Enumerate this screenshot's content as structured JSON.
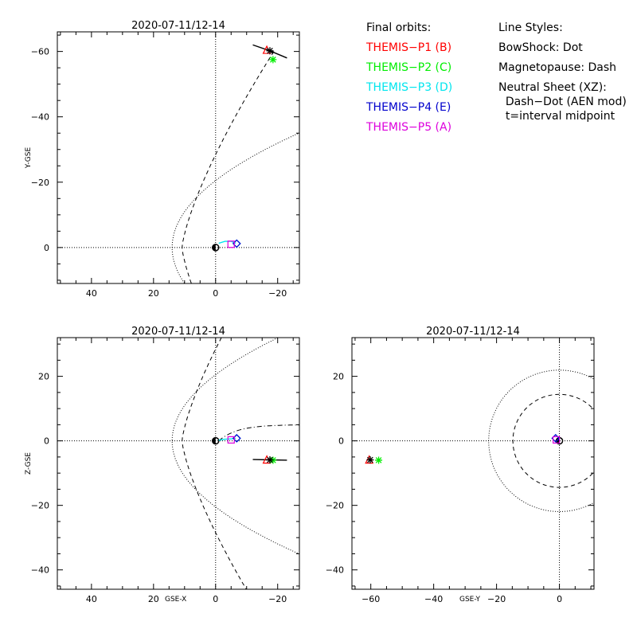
{
  "legend": {
    "orbits_heading": "Final orbits:",
    "styles_heading": "Line Styles:",
    "probes": [
      {
        "label": "THEMIS−P1 (B)",
        "color": "#ff0000"
      },
      {
        "label": "THEMIS−P2 (C)",
        "color": "#00ee00"
      },
      {
        "label": "THEMIS−P3 (D)",
        "color": "#00e5ee"
      },
      {
        "label": "THEMIS−P4 (E)",
        "color": "#0000cc"
      },
      {
        "label": "THEMIS−P5 (A)",
        "color": "#dd00dd"
      }
    ],
    "styles": [
      "BowShock: Dot",
      "Magnetopause: Dash",
      "Neutral Sheet (XZ):",
      "  Dash−Dot (AEN mod)",
      "  t=interval midpoint"
    ]
  },
  "chart_data": [
    {
      "type": "scatter",
      "panel": "XY",
      "title": "2020-07-11/12-14",
      "xlabel": "",
      "ylabel": "Y-GSE",
      "xlim": [
        51,
        -27
      ],
      "ylim": [
        11,
        -66
      ],
      "xticks": [
        40,
        20,
        0,
        -20
      ],
      "yticks": [
        -60,
        -40,
        -20,
        0
      ],
      "tick_labels_x": [
        "40",
        "20",
        "0",
        "−20"
      ],
      "tick_labels_y": [
        "−60",
        "−40",
        "−20",
        "0"
      ],
      "probes": [
        {
          "probe": "THEMIS-P1 (B)",
          "symbol": "triangle",
          "color": "#ff0000",
          "x": -16.5,
          "y": -60.5
        },
        {
          "probe": "THEMIS-P2 (C)",
          "symbol": "asterisk",
          "color": "#00ee00",
          "x": -18.5,
          "y": -57.5
        },
        {
          "probe": "THEMIS-P3 (D)",
          "symbol": "diamond",
          "color": "#00e5ee",
          "x": -6.8,
          "y": -1.2
        },
        {
          "probe": "THEMIS-P4 (E)",
          "symbol": "diamond",
          "color": "#0000cc",
          "x": -6.8,
          "y": -1.2
        },
        {
          "probe": "THEMIS-P5 (A)",
          "symbol": "square",
          "color": "#dd00dd",
          "x": -5.0,
          "y": -1.0
        }
      ],
      "black_asterisk": {
        "x": -17.5,
        "y": -60.2
      },
      "orbit_tracks": [
        {
          "color": "#000000",
          "points": [
            [
              -12,
              -62
            ],
            [
              -17.5,
              -60.2
            ],
            [
              -23,
              -58
            ]
          ]
        },
        {
          "color": "#00e5ee",
          "points": [
            [
              -1,
              -1.3
            ],
            [
              -3,
              -1.9
            ],
            [
              -5,
              -1.9
            ],
            [
              -6.5,
              -1.3
            ]
          ]
        }
      ]
    },
    {
      "type": "scatter",
      "panel": "XZ",
      "title": "2020-07-11/12-14",
      "xlabel": "GSE-X",
      "ylabel": "Z-GSE",
      "xlim": [
        51,
        -27
      ],
      "ylim": [
        -46,
        32
      ],
      "xticks": [
        40,
        20,
        0,
        -20
      ],
      "yticks": [
        -40,
        -20,
        0,
        20
      ],
      "tick_labels_x": [
        "40",
        "20",
        "0",
        "−20"
      ],
      "tick_labels_y": [
        "−40",
        "−20",
        "0",
        "20"
      ],
      "probes": [
        {
          "probe": "THEMIS-P1 (B)",
          "symbol": "triangle",
          "color": "#ff0000",
          "x": -16.5,
          "y": -5.8
        },
        {
          "probe": "THEMIS-P2 (C)",
          "symbol": "asterisk",
          "color": "#00ee00",
          "x": -18.5,
          "y": -6.0
        },
        {
          "probe": "THEMIS-P3 (D)",
          "symbol": "diamond",
          "color": "#00e5ee",
          "x": -6.8,
          "y": 0.8
        },
        {
          "probe": "THEMIS-P4 (E)",
          "symbol": "diamond",
          "color": "#0000cc",
          "x": -6.8,
          "y": 0.8
        },
        {
          "probe": "THEMIS-P5 (A)",
          "symbol": "square",
          "color": "#dd00dd",
          "x": -5.0,
          "y": 0.3
        }
      ],
      "black_asterisk": {
        "x": -17.5,
        "y": -5.9
      },
      "orbit_tracks": [
        {
          "color": "#000000",
          "points": [
            [
              -12,
              -5.8
            ],
            [
              -17.5,
              -5.9
            ],
            [
              -23,
              -6.0
            ]
          ]
        },
        {
          "color": "#00e5ee",
          "points": [
            [
              -1,
              0.2
            ],
            [
              -3,
              0.5
            ],
            [
              -5,
              0.6
            ],
            [
              -6.5,
              0.8
            ]
          ]
        }
      ]
    },
    {
      "type": "scatter",
      "panel": "YZ",
      "title": "2020-07-11/12-14",
      "xlabel": "GSE-Y",
      "ylabel": "",
      "xlim": [
        -66,
        11
      ],
      "ylim": [
        -46,
        32
      ],
      "xticks": [
        -60,
        -40,
        -20,
        0
      ],
      "yticks": [
        -40,
        -20,
        0,
        20
      ],
      "tick_labels_x": [
        "−60",
        "−40",
        "−20",
        "0"
      ],
      "tick_labels_y": [
        "−40",
        "−20",
        "0",
        "20"
      ],
      "probes": [
        {
          "probe": "THEMIS-P1 (B)",
          "symbol": "triangle",
          "color": "#ff0000",
          "x": -60.5,
          "y": -5.8
        },
        {
          "probe": "THEMIS-P2 (C)",
          "symbol": "asterisk",
          "color": "#00ee00",
          "x": -57.5,
          "y": -6.0
        },
        {
          "probe": "THEMIS-P3 (D)",
          "symbol": "diamond",
          "color": "#00e5ee",
          "x": -1.2,
          "y": 0.8
        },
        {
          "probe": "THEMIS-P4 (E)",
          "symbol": "diamond",
          "color": "#0000cc",
          "x": -1.2,
          "y": 0.8
        },
        {
          "probe": "THEMIS-P5 (A)",
          "symbol": "square",
          "color": "#dd00dd",
          "x": -1.0,
          "y": 0.3
        }
      ],
      "black_asterisk": {
        "x": -60.2,
        "y": -5.9
      },
      "orbit_tracks": []
    }
  ]
}
